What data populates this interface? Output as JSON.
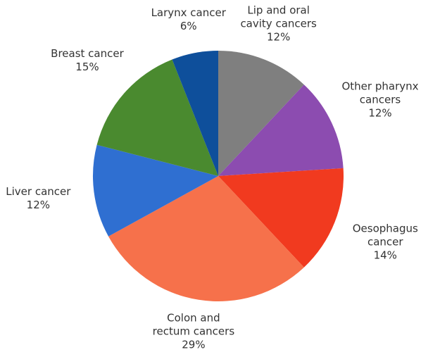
{
  "chart_data": {
    "type": "pie",
    "categories": [
      "Lip and oral cavity cancers",
      "Other pharynx cancers",
      "Oesophagus cancer",
      "Colon and rectum cancers",
      "Liver cancer",
      "Breast cancer",
      "Larynx cancer"
    ],
    "values": [
      12,
      12,
      14,
      29,
      12,
      15,
      6
    ],
    "value_labels": [
      "12%",
      "12%",
      "14%",
      "29%",
      "12%",
      "15%",
      "6%"
    ],
    "colors": [
      "#7f7f7f",
      "#8c4cb0",
      "#f13a1f",
      "#f6714b",
      "#2f6fd1",
      "#4a8a2f",
      "#0e4f9b"
    ]
  }
}
